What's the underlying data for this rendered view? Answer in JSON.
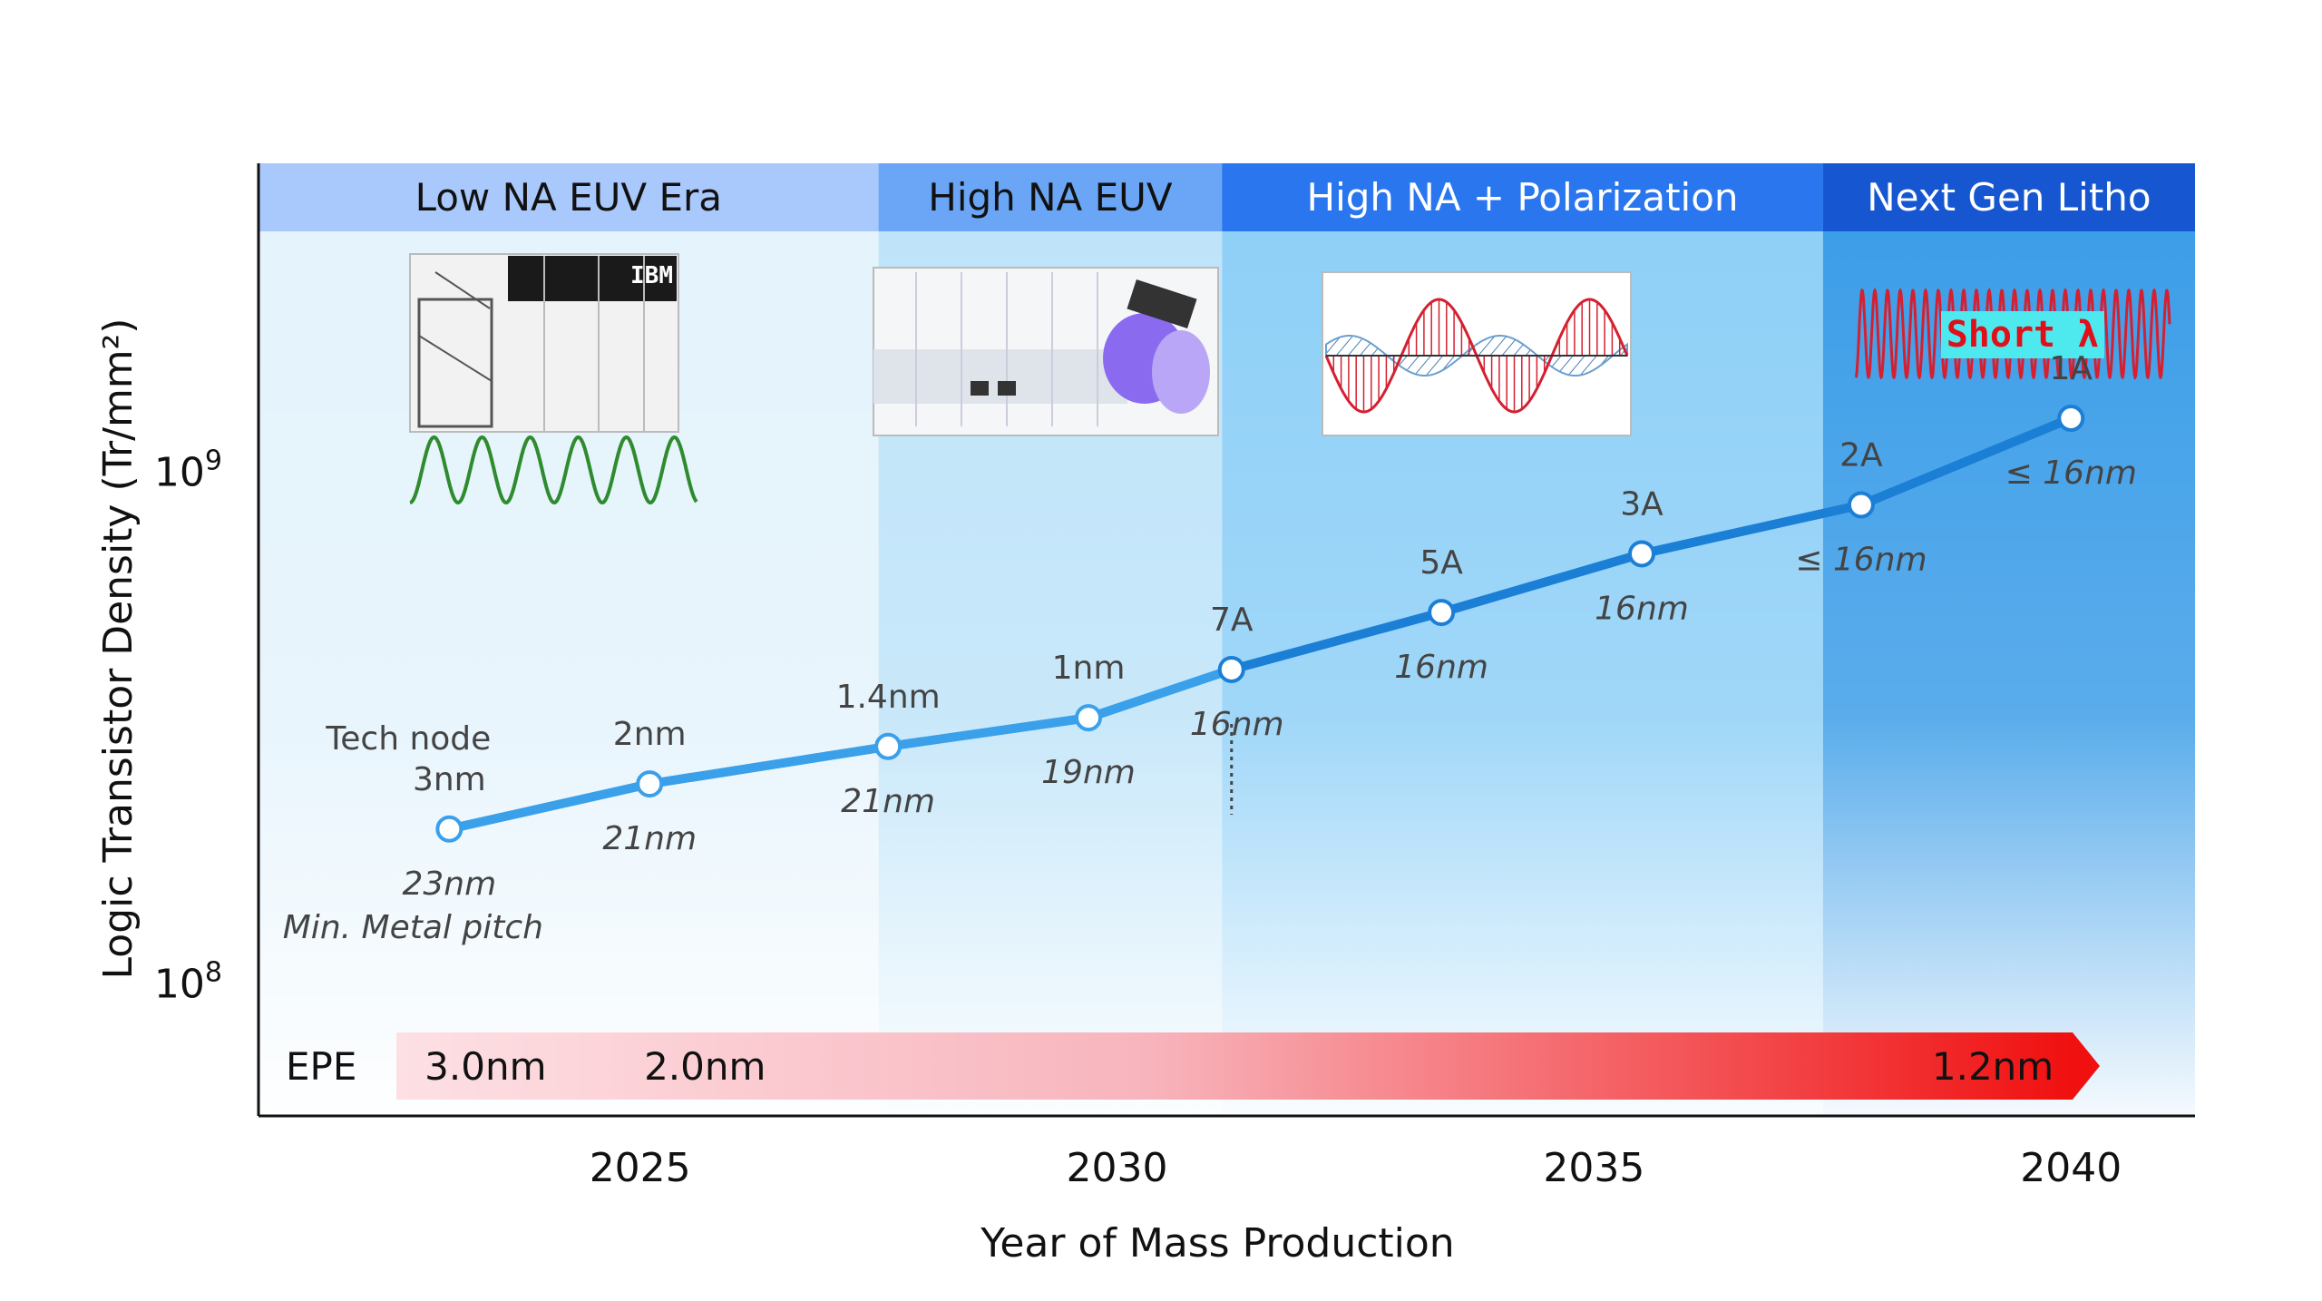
{
  "chart_data": {
    "type": "line",
    "xlabel": "Year of Mass Production",
    "ylabel": "Logic Transistor Density (Tr/mm²)",
    "y_scale": "log",
    "ylim": [
      55000000,
      4000000000
    ],
    "xlim": [
      2021.0,
      2041.3
    ],
    "x_ticks": [
      2025,
      2030,
      2035,
      2040
    ],
    "y_ticks": [
      {
        "value": 100000000,
        "base": "10",
        "exp": "8"
      },
      {
        "value": 1000000000,
        "base": "10",
        "exp": "9"
      }
    ],
    "eras": [
      {
        "label": "Low NA EUV Era",
        "start": 2021.0,
        "end": 2027.5,
        "header_color": "#a9c8fb",
        "text_color": "#111111",
        "bg": "#e4f3fc"
      },
      {
        "label": "High NA EUV",
        "start": 2027.5,
        "end": 2031.1,
        "header_color": "#6aa6f5",
        "text_color": "#111111",
        "bg": "#bfe4f9"
      },
      {
        "label": "High NA + Polarization",
        "start": 2031.1,
        "end": 2037.4,
        "header_color": "#2a76ee",
        "text_color": "#ffffff",
        "bg": "#8fd0f7"
      },
      {
        "label": "Next Gen Litho",
        "start": 2037.4,
        "end": 2041.3,
        "header_color": "#1756d1",
        "text_color": "#ffffff",
        "bg": "#3d9ee8"
      }
    ],
    "series": [
      {
        "x": [
          2023.0,
          2025.1,
          2027.6,
          2029.7,
          2031.2,
          2033.4,
          2035.5,
          2037.8,
          2040.0
        ],
        "y": [
          200000000,
          245000000,
          290000000,
          330000000,
          410000000,
          530000000,
          690000000,
          860000000,
          1270000000
        ],
        "nodes": [
          "3nm",
          "2nm",
          "1.4nm",
          "1nm",
          "7A",
          "5A",
          "3A",
          "2A",
          "1A"
        ],
        "pitch": [
          "23nm",
          "21nm",
          "21nm",
          "19nm",
          "16nm",
          "16nm",
          "16nm",
          "≤ 16nm",
          "≤ 16nm"
        ],
        "color": "#3aa0ea",
        "color_dark": "#1b7fd6"
      }
    ],
    "annotations": {
      "tech_node": "Tech node",
      "min_metal_pitch": "Min. Metal pitch",
      "short_wavelength": "Short λ"
    },
    "epe": {
      "label": "EPE",
      "values": [
        {
          "text": "3.0nm",
          "x": 2023.0
        },
        {
          "text": "2.0nm",
          "x": 2025.3
        },
        {
          "text": "1.2nm",
          "x": 2038.8
        }
      ],
      "color_start": "#fde0e4",
      "color_end": "#f01010"
    },
    "wave_color_green": "#2e8b2e",
    "wave_color_red": "#d42030"
  }
}
